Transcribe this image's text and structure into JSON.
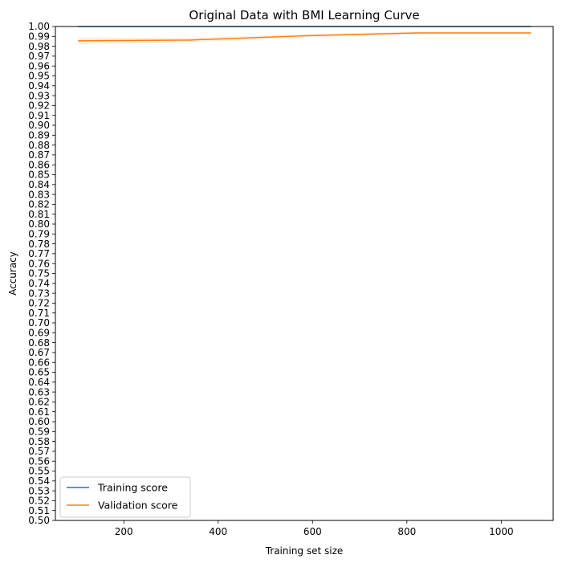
{
  "chart_data": {
    "type": "line",
    "title": "Original Data with BMI Learning Curve",
    "xlabel": "Training set size",
    "ylabel": "Accuracy",
    "xlim": [
      55,
      1110
    ],
    "ylim": [
      0.5,
      1.0
    ],
    "x_ticks": [
      200,
      400,
      600,
      800,
      1000
    ],
    "y_ticks": [
      0.5,
      0.51,
      0.52,
      0.53,
      0.54,
      0.55,
      0.56,
      0.57,
      0.58,
      0.59,
      0.6,
      0.61,
      0.62,
      0.63,
      0.64,
      0.65,
      0.66,
      0.67,
      0.68,
      0.69,
      0.7,
      0.71,
      0.72,
      0.73,
      0.74,
      0.75,
      0.76,
      0.77,
      0.78,
      0.79,
      0.8,
      0.81,
      0.82,
      0.83,
      0.84,
      0.85,
      0.86,
      0.87,
      0.88,
      0.89,
      0.9,
      0.91,
      0.92,
      0.93,
      0.94,
      0.95,
      0.96,
      0.97,
      0.98,
      0.99,
      1.0
    ],
    "grid": false,
    "legend_position": "lower-left",
    "x": [
      103,
      341,
      582,
      823,
      1063
    ],
    "series": [
      {
        "name": "Training score",
        "color": "#1f77b4",
        "values": [
          1.0,
          1.0,
          1.0,
          1.0,
          1.0
        ],
        "band_low": [
          1.0,
          1.0,
          1.0,
          1.0,
          1.0
        ],
        "band_high": [
          1.0,
          1.0,
          1.0,
          1.0,
          1.0
        ]
      },
      {
        "name": "Validation score",
        "color": "#ff7f0e",
        "values": [
          0.9855,
          0.9863,
          0.9906,
          0.9935,
          0.9935
        ],
        "band_low": [
          0.982,
          0.984,
          0.989,
          0.992,
          0.992
        ],
        "band_high": [
          0.989,
          0.9886,
          0.9922,
          0.995,
          0.995
        ]
      }
    ]
  }
}
